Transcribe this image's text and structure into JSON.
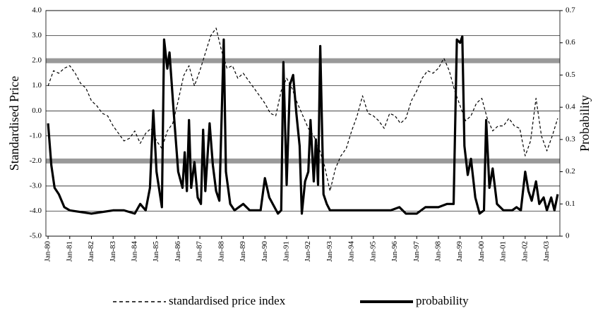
{
  "chart_data": {
    "type": "line",
    "y_label": "Standardised Price",
    "y2_label": "Probability",
    "xlim": [
      1979.9,
      2003.6
    ],
    "xticks": [
      {
        "value": 1980,
        "label": "Jan-80"
      },
      {
        "value": 1981,
        "label": "Jan-81"
      },
      {
        "value": 1982,
        "label": "Jan-82"
      },
      {
        "value": 1983,
        "label": "Jan-83"
      },
      {
        "value": 1984,
        "label": "Jan-84"
      },
      {
        "value": 1985,
        "label": "Jan-85"
      },
      {
        "value": 1986,
        "label": "Jan-86"
      },
      {
        "value": 1987,
        "label": "Jan-87"
      },
      {
        "value": 1988,
        "label": "Jan-88"
      },
      {
        "value": 1989,
        "label": "Jan-89"
      },
      {
        "value": 1990,
        "label": "Jan-90"
      },
      {
        "value": 1991,
        "label": "Jan-91"
      },
      {
        "value": 1992,
        "label": "Jan-92"
      },
      {
        "value": 1993,
        "label": "Jan-93"
      },
      {
        "value": 1994,
        "label": "Jan-94"
      },
      {
        "value": 1995,
        "label": "Jan-95"
      },
      {
        "value": 1996,
        "label": "Jan-96"
      },
      {
        "value": 1997,
        "label": "Jan-97"
      },
      {
        "value": 1998,
        "label": "Jan-98"
      },
      {
        "value": 1999,
        "label": "Jan-99"
      },
      {
        "value": 2000,
        "label": "Jan-00"
      },
      {
        "value": 2001,
        "label": "Jan-01"
      },
      {
        "value": 2002,
        "label": "Jan-02"
      },
      {
        "value": 2003,
        "label": "Jan-03"
      }
    ],
    "ylim": [
      -5,
      4
    ],
    "yticks": [
      {
        "value": 4,
        "label": "4.0"
      },
      {
        "value": 3,
        "label": "3.0"
      },
      {
        "value": 2,
        "label": "2.0"
      },
      {
        "value": 1,
        "label": "1.0"
      },
      {
        "value": 0,
        "label": "0.0"
      },
      {
        "value": -1,
        "label": "-1.0"
      },
      {
        "value": -2,
        "label": "-2.0"
      },
      {
        "value": -3,
        "label": "-3.0"
      },
      {
        "value": -4,
        "label": "-4.0"
      },
      {
        "value": -5,
        "label": "-5.0"
      }
    ],
    "y2lim": [
      0,
      0.7
    ],
    "y2ticks": [
      0.7,
      0.6,
      0.5,
      0.4,
      0.3,
      0.2,
      0.1,
      0
    ],
    "grid": true,
    "reference_lines": [
      2,
      -2
    ],
    "reference_color": "#999999",
    "series": [
      {
        "name": "standardised price index",
        "color": "#000000",
        "dash": true,
        "axis": "y",
        "x": [
          1980,
          1980.25,
          1980.5,
          1980.75,
          1981,
          1981.25,
          1981.5,
          1981.75,
          1982,
          1982.25,
          1982.5,
          1982.75,
          1983,
          1983.25,
          1983.5,
          1983.75,
          1984,
          1984.25,
          1984.5,
          1984.75,
          1985,
          1985.25,
          1985.5,
          1985.75,
          1986,
          1986.25,
          1986.5,
          1986.75,
          1987,
          1987.25,
          1987.5,
          1987.75,
          1988,
          1988.25,
          1988.5,
          1988.75,
          1989,
          1989.25,
          1989.5,
          1989.75,
          1990,
          1990.25,
          1990.5,
          1990.75,
          1991,
          1991.25,
          1991.5,
          1991.75,
          1992,
          1992.25,
          1992.5,
          1992.75,
          1993,
          1993.25,
          1993.5,
          1993.75,
          1994,
          1994.25,
          1994.5,
          1994.75,
          1995,
          1995.25,
          1995.5,
          1995.75,
          1996,
          1996.25,
          1996.5,
          1996.75,
          1997,
          1997.25,
          1997.5,
          1997.75,
          1998,
          1998.25,
          1998.5,
          1998.75,
          1999,
          1999.25,
          1999.5,
          1999.75,
          2000,
          2000.25,
          2000.5,
          2000.75,
          2001,
          2001.25,
          2001.5,
          2001.75,
          2002,
          2002.25,
          2002.5,
          2002.75,
          2003,
          2003.25,
          2003.5
        ],
        "values": [
          1.0,
          1.6,
          1.5,
          1.7,
          1.8,
          1.5,
          1.1,
          0.9,
          0.4,
          0.2,
          -0.1,
          -0.2,
          -0.6,
          -0.9,
          -1.2,
          -1.1,
          -0.8,
          -1.3,
          -0.9,
          -0.7,
          -1.2,
          -1.5,
          -0.8,
          -0.5,
          0.4,
          1.4,
          1.8,
          1.0,
          1.6,
          2.3,
          3.0,
          3.3,
          2.4,
          1.7,
          1.8,
          1.3,
          1.5,
          1.2,
          0.9,
          0.6,
          0.3,
          -0.1,
          -0.2,
          0.8,
          1.3,
          0.9,
          0.3,
          -0.2,
          -0.7,
          -1.0,
          -1.5,
          -2.2,
          -3.2,
          -2.3,
          -1.8,
          -1.5,
          -0.8,
          -0.2,
          0.6,
          -0.1,
          -0.2,
          -0.4,
          -0.7,
          -0.1,
          -0.2,
          -0.5,
          -0.3,
          0.4,
          0.8,
          1.3,
          1.6,
          1.5,
          1.7,
          2.1,
          1.6,
          0.8,
          0.2,
          -0.4,
          -0.2,
          0.3,
          0.5,
          -0.3,
          -0.8,
          -0.6,
          -0.6,
          -0.3,
          -0.6,
          -0.7,
          -1.8,
          -1.2,
          0.5,
          -1.0,
          -1.6,
          -1.0,
          -0.3
        ]
      },
      {
        "name": "probability",
        "color": "#000000",
        "dash": false,
        "axis": "y2",
        "x": [
          1980,
          1980.15,
          1980.3,
          1980.5,
          1980.75,
          1981,
          1982,
          1983,
          1983.5,
          1984,
          1984.25,
          1984.5,
          1984.7,
          1984.85,
          1985,
          1985.25,
          1985.35,
          1985.5,
          1985.6,
          1985.8,
          1986,
          1986.2,
          1986.3,
          1986.4,
          1986.5,
          1986.6,
          1986.75,
          1986.9,
          1987.05,
          1987.15,
          1987.25,
          1987.45,
          1987.6,
          1987.75,
          1987.9,
          1988.1,
          1988.2,
          1988.4,
          1988.6,
          1989,
          1989.3,
          1989.8,
          1990,
          1990.2,
          1990.6,
          1990.75,
          1990.85,
          1991,
          1991.15,
          1991.3,
          1991.45,
          1991.6,
          1991.7,
          1991.85,
          1992,
          1992.1,
          1992.25,
          1992.35,
          1992.45,
          1992.55,
          1992.7,
          1992.85,
          1993,
          1993.5,
          1994,
          1995,
          1995.8,
          1996.2,
          1996.5,
          1997,
          1997.4,
          1997.7,
          1998,
          1998.4,
          1998.7,
          1998.85,
          1999,
          1999.1,
          1999.2,
          1999.35,
          1999.5,
          1999.7,
          1999.9,
          2000.1,
          2000.2,
          2000.35,
          2000.5,
          2000.7,
          2001,
          2001.4,
          2001.6,
          2001.8,
          2002,
          2002.15,
          2002.3,
          2002.5,
          2002.65,
          2002.85,
          2003,
          2003.2,
          2003.35,
          2003.5
        ],
        "values": [
          0.35,
          0.22,
          0.15,
          0.13,
          0.09,
          0.08,
          0.07,
          0.08,
          0.08,
          0.07,
          0.1,
          0.08,
          0.15,
          0.39,
          0.2,
          0.09,
          0.61,
          0.52,
          0.57,
          0.38,
          0.2,
          0.15,
          0.26,
          0.14,
          0.36,
          0.15,
          0.23,
          0.12,
          0.1,
          0.33,
          0.14,
          0.35,
          0.22,
          0.14,
          0.11,
          0.61,
          0.2,
          0.1,
          0.08,
          0.1,
          0.08,
          0.08,
          0.18,
          0.12,
          0.07,
          0.08,
          0.54,
          0.16,
          0.47,
          0.5,
          0.38,
          0.28,
          0.07,
          0.17,
          0.2,
          0.36,
          0.17,
          0.3,
          0.16,
          0.59,
          0.13,
          0.1,
          0.08,
          0.08,
          0.08,
          0.08,
          0.08,
          0.09,
          0.07,
          0.07,
          0.09,
          0.09,
          0.09,
          0.1,
          0.1,
          0.61,
          0.6,
          0.62,
          0.28,
          0.19,
          0.24,
          0.12,
          0.07,
          0.08,
          0.36,
          0.15,
          0.21,
          0.1,
          0.08,
          0.08,
          0.09,
          0.08,
          0.2,
          0.14,
          0.11,
          0.17,
          0.1,
          0.12,
          0.08,
          0.12,
          0.08,
          0.13
        ]
      }
    ]
  }
}
